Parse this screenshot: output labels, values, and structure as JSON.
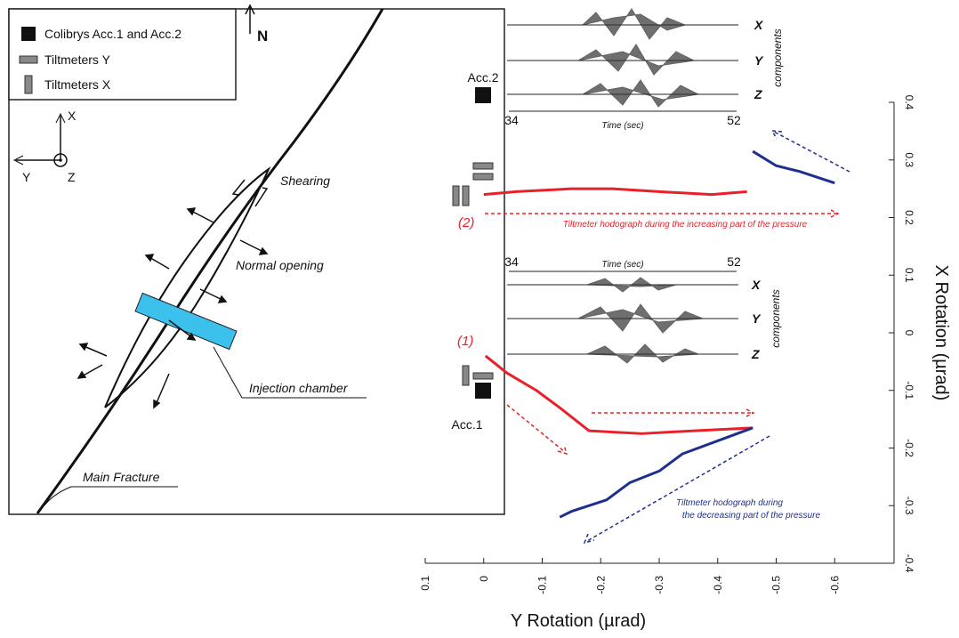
{
  "diagram": {
    "legend": [
      "Colibrys Acc.1 and Acc.2",
      "Tiltmeters Y",
      "Tiltmeters X"
    ],
    "north": "N",
    "axes": {
      "x": "X",
      "y": "Y",
      "z": "Z"
    },
    "labels": {
      "shearing": "Shearing",
      "normal_opening": "Normal opening",
      "injection_chamber": "Injection chamber",
      "main_fracture": "Main Fracture"
    }
  },
  "seismograms": [
    {
      "station": "Acc.2",
      "components": [
        "X",
        "Y",
        "Z"
      ],
      "components_label": "components",
      "time_label": "Time (sec)",
      "time_start": "34",
      "time_end": "52"
    },
    {
      "station": "Acc.1",
      "components": [
        "X",
        "Y",
        "Z"
      ],
      "components_label": "components",
      "time_label": "Time (sec)",
      "time_start": "34",
      "time_end": "52"
    }
  ],
  "chart_data": {
    "type": "line",
    "xlabel": "Y Rotation (µrad)",
    "ylabel": "X Rotation (µrad)",
    "xlim": [
      0.1,
      -0.7
    ],
    "ylim": [
      -0.4,
      0.4
    ],
    "xticks": [
      0.1,
      0,
      -0.1,
      -0.2,
      -0.3,
      -0.4,
      -0.5,
      -0.6
    ],
    "yticks": [
      -0.4,
      -0.3,
      -0.2,
      -0.1,
      0,
      0.1,
      0.2,
      0.3,
      0.4
    ],
    "series": [
      {
        "color": "#e8202a",
        "x": [
          -0.003,
          -0.04,
          -0.09,
          -0.13,
          -0.18,
          -0.27,
          -0.36,
          -0.46
        ],
        "y": [
          -0.04,
          -0.07,
          -0.1,
          -0.13,
          -0.17,
          -0.175,
          -0.17,
          -0.165
        ]
      },
      {
        "color": "#1f2f8f",
        "x": [
          -0.46,
          -0.42,
          -0.34,
          -0.3,
          -0.25,
          -0.21,
          -0.15,
          -0.13
        ],
        "y": [
          -0.165,
          -0.18,
          -0.21,
          -0.24,
          -0.26,
          -0.29,
          -0.31,
          -0.32
        ]
      },
      {
        "color": "#e8202a",
        "x": [
          0.0,
          -0.055,
          -0.15,
          -0.22,
          -0.3,
          -0.39,
          -0.45
        ],
        "y": [
          0.24,
          0.245,
          0.25,
          0.25,
          0.245,
          0.24,
          0.245
        ]
      },
      {
        "color": "#1f2f8f",
        "x": [
          -0.46,
          -0.5,
          -0.54,
          -0.6
        ],
        "y": [
          0.315,
          0.29,
          0.28,
          0.26
        ]
      }
    ],
    "annotations": [
      "(1)",
      "(2)",
      "Tiltmeter hodograph during the increasing part of the pressure",
      "Tiltmeter hodograph during",
      "the decreasing part of the pressure"
    ]
  }
}
